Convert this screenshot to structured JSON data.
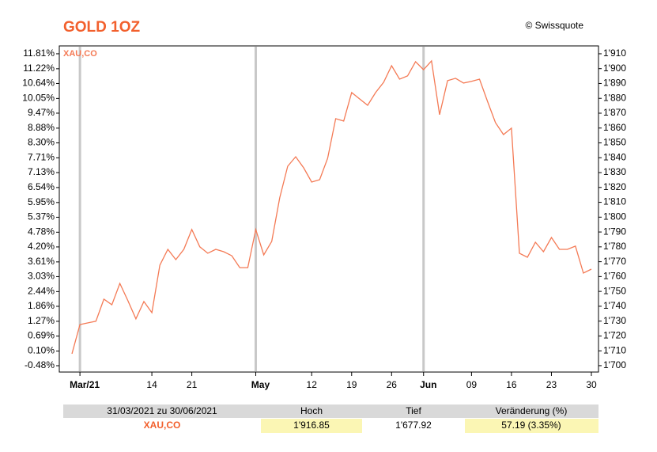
{
  "chart_data": {
    "type": "line",
    "title": "GOLD 1OZ",
    "source": "© Swissquote",
    "x": [
      "2021-03-31",
      "2021-04-01",
      "2021-04-02",
      "2021-04-05",
      "2021-04-06",
      "2021-04-07",
      "2021-04-08",
      "2021-04-09",
      "2021-04-12",
      "2021-04-13",
      "2021-04-14",
      "2021-04-15",
      "2021-04-16",
      "2021-04-19",
      "2021-04-20",
      "2021-04-21",
      "2021-04-22",
      "2021-04-23",
      "2021-04-26",
      "2021-04-27",
      "2021-04-28",
      "2021-04-29",
      "2021-04-30",
      "2021-05-03",
      "2021-05-04",
      "2021-05-05",
      "2021-05-06",
      "2021-05-07",
      "2021-05-10",
      "2021-05-11",
      "2021-05-12",
      "2021-05-13",
      "2021-05-14",
      "2021-05-17",
      "2021-05-18",
      "2021-05-19",
      "2021-05-20",
      "2021-05-21",
      "2021-05-24",
      "2021-05-25",
      "2021-05-26",
      "2021-05-27",
      "2021-05-28",
      "2021-05-31",
      "2021-06-01",
      "2021-06-02",
      "2021-06-03",
      "2021-06-04",
      "2021-06-07",
      "2021-06-08",
      "2021-06-09",
      "2021-06-10",
      "2021-06-11",
      "2021-06-14",
      "2021-06-15",
      "2021-06-16",
      "2021-06-17",
      "2021-06-18",
      "2021-06-21",
      "2021-06-22",
      "2021-06-23",
      "2021-06-24",
      "2021-06-25",
      "2021-06-28",
      "2021-06-29",
      "2021-06-30"
    ],
    "series": [
      {
        "name": "XAU,CO",
        "color": "#f47a55",
        "values": [
          1708.0,
          1727.7,
          1728.8,
          1729.9,
          1744.8,
          1741.0,
          1755.4,
          1743.7,
          1731.5,
          1743.2,
          1735.7,
          1767.7,
          1778.3,
          1771.4,
          1778.3,
          1791.7,
          1780.0,
          1775.7,
          1778.3,
          1776.7,
          1774.0,
          1766.0,
          1766.0,
          1791.7,
          1774.6,
          1783.7,
          1813.0,
          1834.3,
          1840.7,
          1833.2,
          1823.6,
          1825.2,
          1839.6,
          1866.3,
          1864.7,
          1883.9,
          1879.6,
          1875.3,
          1883.9,
          1890.8,
          1902.0,
          1892.9,
          1895.1,
          1904.7,
          1899.3,
          1905.2,
          1869.0,
          1891.9,
          1893.5,
          1890.3,
          1891.4,
          1892.9,
          1878.0,
          1863.6,
          1855.6,
          1859.9,
          1775.7,
          1773.0,
          1783.1,
          1776.7,
          1786.3,
          1778.3,
          1778.3,
          1780.5,
          1762.3,
          1765.0
        ]
      }
    ],
    "ylim": [
      1695.7,
      1915.3
    ],
    "yticks": [
      {
        "value": 1910,
        "label": "1'910"
      },
      {
        "value": 1900,
        "label": "1'900"
      },
      {
        "value": 1890,
        "label": "1'890"
      },
      {
        "value": 1880,
        "label": "1'880"
      },
      {
        "value": 1870,
        "label": "1'870"
      },
      {
        "value": 1860,
        "label": "1'860"
      },
      {
        "value": 1850,
        "label": "1'850"
      },
      {
        "value": 1840,
        "label": "1'840"
      },
      {
        "value": 1830,
        "label": "1'830"
      },
      {
        "value": 1820,
        "label": "1'820"
      },
      {
        "value": 1810,
        "label": "1'810"
      },
      {
        "value": 1800,
        "label": "1'800"
      },
      {
        "value": 1790,
        "label": "1'790"
      },
      {
        "value": 1780,
        "label": "1'780"
      },
      {
        "value": 1770,
        "label": "1'770"
      },
      {
        "value": 1760,
        "label": "1'760"
      },
      {
        "value": 1750,
        "label": "1'750"
      },
      {
        "value": 1740,
        "label": "1'740"
      },
      {
        "value": 1730,
        "label": "1'730"
      },
      {
        "value": 1720,
        "label": "1'720"
      },
      {
        "value": 1710,
        "label": "1'710"
      },
      {
        "value": 1700,
        "label": "1'700"
      }
    ],
    "y2lim": [
      -0.73,
      12.12
    ],
    "y2ticks": [
      {
        "value": 11.81,
        "label": "11.81%"
      },
      {
        "value": 11.22,
        "label": "11.22%"
      },
      {
        "value": 10.64,
        "label": "10.64%"
      },
      {
        "value": 10.05,
        "label": "10.05%"
      },
      {
        "value": 9.47,
        "label": "9.47%"
      },
      {
        "value": 8.88,
        "label": "8.88%"
      },
      {
        "value": 8.3,
        "label": "8.30%"
      },
      {
        "value": 7.71,
        "label": "7.71%"
      },
      {
        "value": 7.13,
        "label": "7.13%"
      },
      {
        "value": 6.54,
        "label": "6.54%"
      },
      {
        "value": 5.95,
        "label": "5.95%"
      },
      {
        "value": 5.37,
        "label": "5.37%"
      },
      {
        "value": 4.78,
        "label": "4.78%"
      },
      {
        "value": 4.2,
        "label": "4.20%"
      },
      {
        "value": 3.61,
        "label": "3.61%"
      },
      {
        "value": 3.03,
        "label": "3.03%"
      },
      {
        "value": 2.44,
        "label": "2.44%"
      },
      {
        "value": 1.86,
        "label": "1.86%"
      },
      {
        "value": 1.27,
        "label": "1.27%"
      },
      {
        "value": 0.69,
        "label": "0.69%"
      },
      {
        "value": 0.1,
        "label": "0.10%"
      },
      {
        "value": -0.48,
        "label": "-0.48%"
      }
    ],
    "xticks": [
      {
        "value": "2021-04-01",
        "label": "Mar/21"
      },
      {
        "value": "2021-04-14",
        "label": "14"
      },
      {
        "value": "2021-04-21",
        "label": "21"
      },
      {
        "value": "2021-05-03",
        "label": "May"
      },
      {
        "value": "2021-05-12",
        "label": "12"
      },
      {
        "value": "2021-05-19",
        "label": "19"
      },
      {
        "value": "2021-05-26",
        "label": "26"
      },
      {
        "value": "2021-06-01",
        "label": "Jun"
      },
      {
        "value": "2021-06-09",
        "label": "09"
      },
      {
        "value": "2021-06-16",
        "label": "16"
      },
      {
        "value": "2021-06-23",
        "label": "23"
      },
      {
        "value": "2021-06-30",
        "label": "30"
      }
    ]
  },
  "table": {
    "header": [
      "31/03/2021 zu 30/06/2021",
      "Hoch",
      "Tief",
      "Veränderung (%)"
    ],
    "row": [
      "XAU,CO",
      "1'916.85",
      "1'677.92",
      "57.19 (3.35%)"
    ]
  }
}
